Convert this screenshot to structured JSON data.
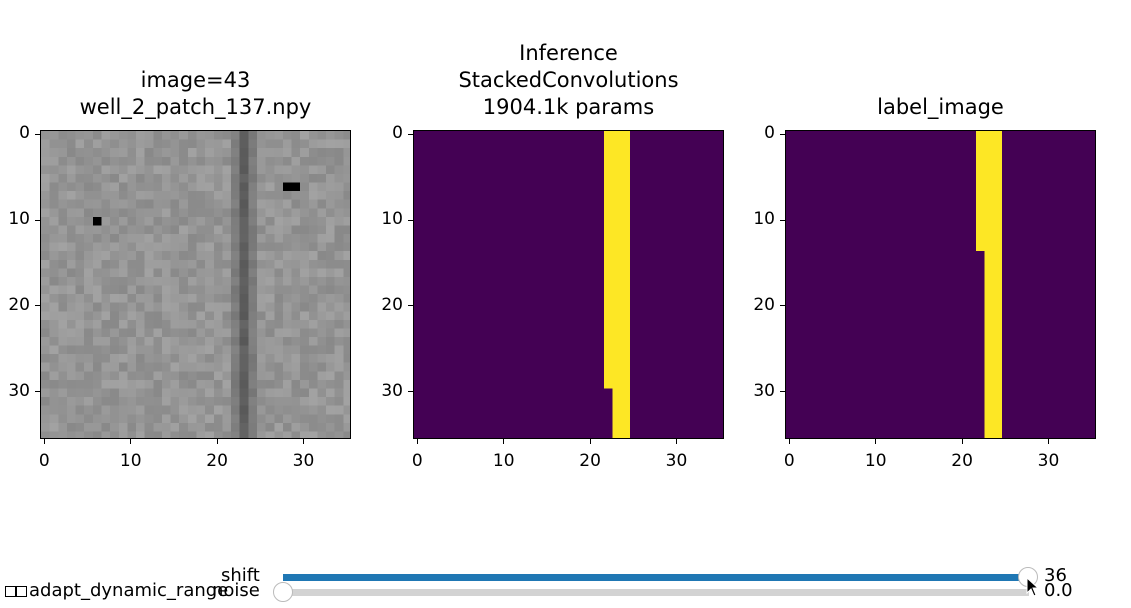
{
  "panels": [
    {
      "title_line1": "image=43",
      "title_line2": "well_2_patch_137.npy"
    },
    {
      "title_line1": "Inference",
      "title_line2": "StackedConvolutions",
      "title_line3": "1904.1k params"
    },
    {
      "title_line1": "label_image"
    }
  ],
  "axis_ticks": {
    "x": [
      "0",
      "10",
      "20",
      "30"
    ],
    "y": [
      "0",
      "10",
      "20",
      "30"
    ]
  },
  "colors": {
    "yellow": "#fde725",
    "purple": "#440154"
  },
  "controls": {
    "shift": {
      "label": "shift",
      "value_text": "36",
      "value": 36,
      "max": 36
    },
    "noise": {
      "label": "noise",
      "value_text": "0.0",
      "value": 0.0
    },
    "checkbox": {
      "label": "adapt_dynamic_range",
      "checked": false
    }
  },
  "cursor": {
    "icon": "mouse-pointer-icon"
  }
}
